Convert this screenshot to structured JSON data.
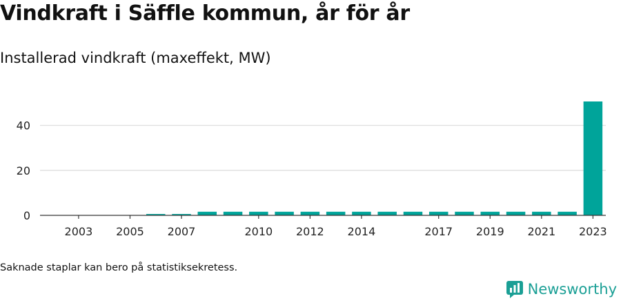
{
  "header": {
    "title": "Vindkraft i Säffle kommun, år för år",
    "subtitle": "Installerad vindkraft (maxeffekt, MW)"
  },
  "footer": {
    "note": "Saknade staplar kan bero på statistiksekretess.",
    "brand": "Newsworthy",
    "brand_icon": "newsworthy-logo-icon"
  },
  "colors": {
    "bar": "#00a49a",
    "grid": "#dcdcdc",
    "axis": "#333333",
    "brand": "#1a9f95"
  },
  "chart_data": {
    "type": "bar",
    "title": "",
    "xlabel": "",
    "ylabel": "",
    "categories": [
      2002,
      2003,
      2004,
      2005,
      2006,
      2007,
      2008,
      2009,
      2010,
      2011,
      2012,
      2013,
      2014,
      2015,
      2016,
      2017,
      2018,
      2019,
      2020,
      2021,
      2022,
      2023
    ],
    "values": [
      0.1,
      0.1,
      0.1,
      0.1,
      0.6,
      0.6,
      1.6,
      1.6,
      1.6,
      1.6,
      1.6,
      1.6,
      1.6,
      1.6,
      1.6,
      1.6,
      1.6,
      1.6,
      1.6,
      1.6,
      1.6,
      50.6
    ],
    "xticks": [
      "2003",
      "2005",
      "2007",
      "2010",
      "2012",
      "2014",
      "2017",
      "2019",
      "2021",
      "2023"
    ],
    "yticks": [
      0,
      20,
      40
    ],
    "ylim": [
      0,
      50.6
    ],
    "grid": true,
    "legend": "none"
  }
}
